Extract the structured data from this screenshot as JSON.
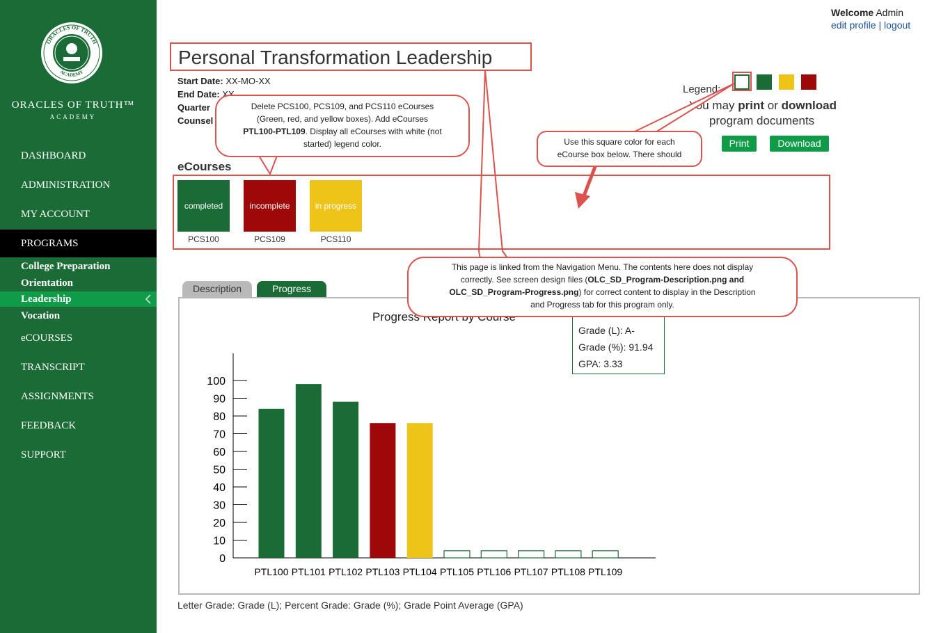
{
  "sidebar": {
    "brand_name": "ORACLES OF TRUTH™",
    "brand_sub": "ACADEMY",
    "logo_text_top": "ORACLES OF TRUTH",
    "logo_text_bottom": "ACADEMY",
    "nav": [
      {
        "label": "DASHBOARD"
      },
      {
        "label": "ADMINISTRATION"
      },
      {
        "label": "MY ACCOUNT"
      },
      {
        "label": "PROGRAMS"
      },
      {
        "label": "eCOURSES"
      },
      {
        "label": "TRANSCRIPT"
      },
      {
        "label": "ASSIGNMENTS"
      },
      {
        "label": "FEEDBACK"
      },
      {
        "label": "SUPPORT"
      }
    ],
    "programs_sub": [
      {
        "label": "College Preparation"
      },
      {
        "label": "Orientation"
      },
      {
        "label": "Leadership"
      },
      {
        "label": "Vocation"
      }
    ]
  },
  "header": {
    "welcome_label": "Welcome",
    "user": "Admin",
    "edit_profile": "edit profile",
    "separator": "|",
    "logout": "logout"
  },
  "program": {
    "title": "Personal Transformation Leadership",
    "start_label": "Start Date:",
    "start_value": "XX-MO-XX",
    "end_label": "End Date:",
    "end_value": "XX-",
    "quarter_label": "Quarter",
    "counselor_label": "Counsel"
  },
  "legend": {
    "label": "Legend:",
    "print_prefix": "You may",
    "print_word": "print",
    "or_word": "or",
    "download_word": "download",
    "docs_line": "program documents",
    "print_button": "Print",
    "download_button": "Download",
    "colors": {
      "white": "#ffffff",
      "green": "#1a6b35",
      "yellow": "#efc419",
      "red": "#9e0808"
    }
  },
  "ecourses": {
    "heading": "eCourses",
    "items": [
      {
        "code": "PCS100",
        "status": "completed",
        "color": "#1a6b35"
      },
      {
        "code": "PCS109",
        "status": "incomplete",
        "color": "#9e0808"
      },
      {
        "code": "PCS110",
        "status": "in progress",
        "color": "#efc419"
      }
    ]
  },
  "callouts": {
    "c1": {
      "line1": "Delete PCS100, PCS109, and PCS110 eCourses",
      "line2": "(Green, red, and yellow boxes). Add eCourses",
      "line3_bold": "PTL100-PTL109",
      "line3_rest": ". Display all eCourses with white (not",
      "line4": "started) legend color."
    },
    "c2": {
      "line1": "Use this square color for each",
      "line2": "eCourse box below. There should"
    },
    "c3": {
      "line1": "This page is linked from the Navigation Menu. The contents here does not display",
      "line2_a": "correctly. See screen design files (",
      "line2_b": "OLC_SD_Program-Description.png and",
      "line3_a": "OLC_SD_Program-Progress.png",
      "line3_b": ") for correct content to display in the Description",
      "line4": "and Progress tab for this program only."
    }
  },
  "tabs": [
    {
      "label": "Description"
    },
    {
      "label": "Progress"
    }
  ],
  "grades": {
    "letter": "Grade (L):  A-",
    "percent": "Grade (%): 91.94",
    "gpa": "GPA: 3.33"
  },
  "footnote": "Letter Grade: Grade (L); Percent Grade: Grade (%); Grade Point Average (GPA)",
  "chart_data": {
    "type": "bar",
    "title": "Progress Report by Course",
    "categories": [
      "PTL100",
      "PTL101",
      "PTL102",
      "PTL103",
      "PTL104",
      "PTL105",
      "PTL106",
      "PTL107",
      "PTL108",
      "PTL109"
    ],
    "values": [
      84,
      98,
      88,
      76,
      76,
      4,
      4,
      4,
      4,
      4
    ],
    "colors": [
      "#1a6b35",
      "#1a6b35",
      "#1a6b35",
      "#9e0808",
      "#efc419",
      "#ffffff",
      "#ffffff",
      "#ffffff",
      "#ffffff",
      "#ffffff"
    ],
    "ylim": [
      0,
      100
    ],
    "yticks": [
      0,
      10,
      20,
      30,
      40,
      50,
      60,
      70,
      80,
      90,
      100
    ],
    "xlabel": "",
    "ylabel": "",
    "grid": false
  }
}
